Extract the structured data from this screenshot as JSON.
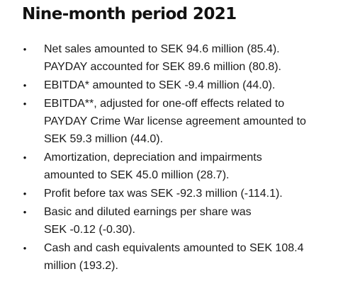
{
  "heading": "Nine-month period 2021",
  "bullet_glyph": "•",
  "bullets": [
    {
      "lines": [
        "Net sales amounted to SEK 94.6 million (85.4).",
        "PAYDAY accounted for SEK 89.6 million (80.8)."
      ]
    },
    {
      "lines": [
        "EBITDA* amounted to SEK -9.4 million (44.0)."
      ]
    },
    {
      "lines": [
        "EBITDA**, adjusted for one-off effects related to",
        "PAYDAY Crime War license agreement amounted to",
        "SEK 59.3 million (44.0)."
      ]
    },
    {
      "lines": [
        "Amortization, depreciation and impairments",
        "amounted to SEK 45.0 million (28.7)."
      ]
    },
    {
      "lines": [
        "Profit before tax was SEK -92.3 million (-114.1)."
      ]
    },
    {
      "lines": [
        "Basic and diluted earnings per share was",
        "SEK -0.12 (-0.30)."
      ]
    },
    {
      "lines": [
        "Cash and cash equivalents amounted to SEK 108.4",
        "million (193.2)."
      ]
    }
  ]
}
